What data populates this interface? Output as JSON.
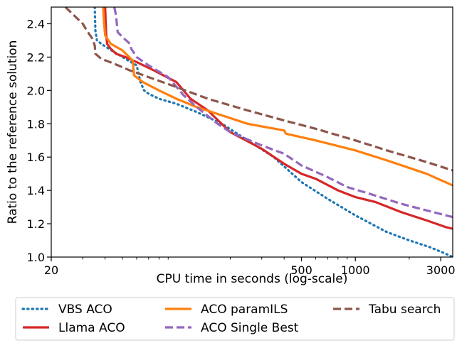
{
  "chart_data": {
    "type": "line",
    "xlabel": "CPU time in seconds (log-scale)",
    "ylabel": "Ratio to the reference solution",
    "xscale": "log",
    "xlim": [
      20,
      3500
    ],
    "ylim": [
      1.0,
      2.5
    ],
    "x_ticks": [
      {
        "value": 20,
        "label": "20"
      },
      {
        "value": 500,
        "label": "500"
      },
      {
        "value": 1000,
        "label": "1000"
      },
      {
        "value": 3000,
        "label": "3000"
      }
    ],
    "y_ticks": [
      {
        "value": 1.0,
        "label": "1.0"
      },
      {
        "value": 1.2,
        "label": "1.2"
      },
      {
        "value": 1.4,
        "label": "1.4"
      },
      {
        "value": 1.6,
        "label": "1.6"
      },
      {
        "value": 1.8,
        "label": "1.8"
      },
      {
        "value": 2.0,
        "label": "2.0"
      },
      {
        "value": 2.2,
        "label": "2.2"
      },
      {
        "value": 2.4,
        "label": "2.4"
      }
    ],
    "grid": false,
    "legend": {
      "position": "bottom",
      "columns": 3
    },
    "series": [
      {
        "name": "VBS ACO",
        "color": "#1f77b4",
        "style": "dotted",
        "x": [
          35,
          35.3,
          36,
          38,
          42,
          50,
          60,
          63,
          66,
          70,
          80,
          100,
          130,
          180,
          250,
          350,
          500,
          700,
          1000,
          1500,
          2000,
          2600,
          3200,
          3500
        ],
        "y": [
          2.5,
          2.36,
          2.3,
          2.28,
          2.25,
          2.2,
          2.15,
          2.05,
          2.0,
          1.98,
          1.95,
          1.92,
          1.87,
          1.8,
          1.7,
          1.6,
          1.45,
          1.35,
          1.25,
          1.15,
          1.1,
          1.06,
          1.02,
          1.0
        ]
      },
      {
        "name": "Llama ACO",
        "color": "#d62728",
        "style": "solid",
        "x": [
          40,
          40.5,
          41,
          43,
          46,
          52,
          60,
          75,
          100,
          120,
          150,
          200,
          300,
          400,
          500,
          600,
          800,
          1000,
          1300,
          1800,
          2500,
          3200,
          3500
        ],
        "y": [
          2.5,
          2.35,
          2.28,
          2.25,
          2.22,
          2.2,
          2.17,
          2.12,
          2.05,
          1.95,
          1.88,
          1.75,
          1.65,
          1.56,
          1.5,
          1.47,
          1.4,
          1.36,
          1.33,
          1.27,
          1.22,
          1.18,
          1.17
        ]
      },
      {
        "name": "ACO paramILS",
        "color": "#ff7f0e",
        "style": "solid",
        "x": [
          39,
          39.5,
          40,
          43,
          50,
          57,
          58,
          65,
          80,
          100,
          130,
          180,
          250,
          400,
          410,
          600,
          1000,
          1500,
          2500,
          3500
        ],
        "y": [
          2.5,
          2.4,
          2.33,
          2.28,
          2.24,
          2.18,
          2.09,
          2.05,
          2.0,
          1.95,
          1.9,
          1.85,
          1.8,
          1.76,
          1.74,
          1.7,
          1.64,
          1.58,
          1.5,
          1.43
        ]
      },
      {
        "name": "ACO Single Best",
        "color": "#9467bd",
        "style": "dashed",
        "x": [
          45,
          46,
          47,
          50,
          55,
          56,
          60,
          70,
          90,
          110,
          130,
          170,
          200,
          300,
          400,
          500,
          700,
          900,
          1200,
          1800,
          2500,
          3500
        ],
        "y": [
          2.5,
          2.45,
          2.35,
          2.32,
          2.28,
          2.25,
          2.2,
          2.15,
          2.08,
          1.97,
          1.9,
          1.8,
          1.75,
          1.67,
          1.62,
          1.55,
          1.48,
          1.42,
          1.38,
          1.32,
          1.28,
          1.24
        ]
      },
      {
        "name": "Tabu search",
        "color": "#8c564b",
        "style": "dashed",
        "x": [
          24,
          30,
          32,
          33,
          34,
          35,
          35.3,
          38,
          45,
          55,
          70,
          100,
          150,
          250,
          400,
          600,
          1000,
          1500,
          2500,
          3500
        ],
        "y": [
          2.5,
          2.4,
          2.35,
          2.33,
          2.31,
          2.27,
          2.22,
          2.19,
          2.16,
          2.12,
          2.08,
          2.02,
          1.95,
          1.88,
          1.82,
          1.77,
          1.7,
          1.64,
          1.57,
          1.52
        ]
      }
    ]
  }
}
